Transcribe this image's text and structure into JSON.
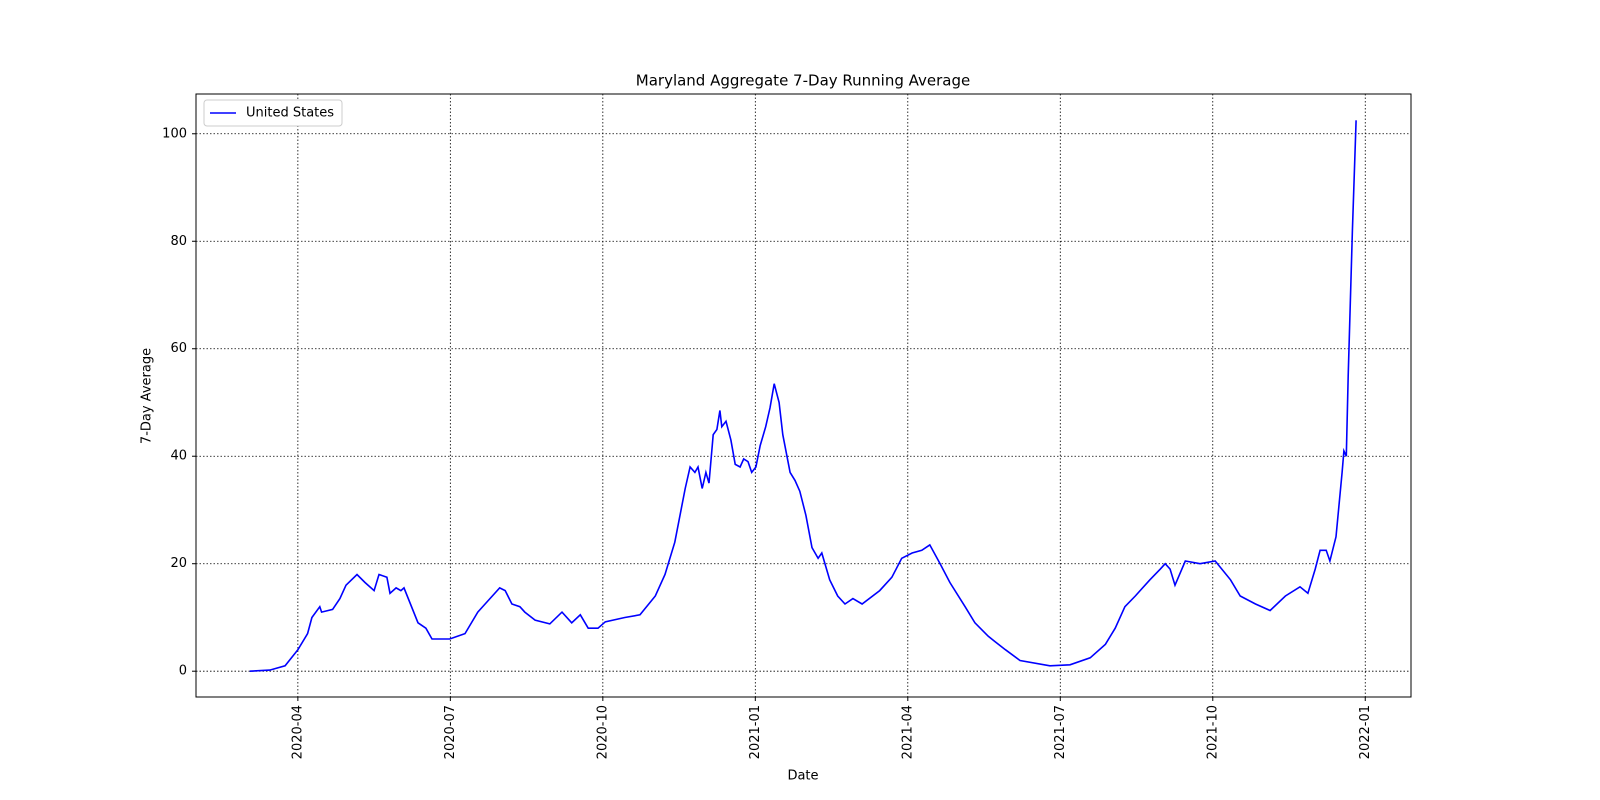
{
  "chart_data": {
    "type": "line",
    "title": "Maryland Aggregate 7-Day Running Average",
    "xlabel": "Date",
    "ylabel": "7-Day Average",
    "x": [
      2020.171,
      2020.204,
      2020.229,
      2020.25,
      2020.266,
      2020.273,
      2020.286,
      2020.289,
      2020.307,
      2020.319,
      2020.329,
      2020.347,
      2020.36,
      2020.375,
      2020.383,
      2020.396,
      2020.401,
      2020.411,
      2020.419,
      2020.424,
      2020.447,
      2020.46,
      2020.47,
      2020.499,
      2020.524,
      2020.545,
      2020.557,
      2020.581,
      2020.59,
      2020.601,
      2020.614,
      2020.622,
      2020.639,
      2020.663,
      2020.683,
      2020.699,
      2020.713,
      2020.726,
      2020.742,
      2020.754,
      2020.786,
      2020.811,
      2020.836,
      2020.852,
      2020.868,
      2020.885,
      2020.893,
      2020.901,
      2020.906,
      2020.913,
      2020.919,
      2020.924,
      2020.931,
      2020.937,
      2020.942,
      2020.945,
      2020.952,
      2020.96,
      2020.967,
      2020.975,
      2020.981,
      2020.988,
      2020.994,
      2021.001,
      2021.008,
      2021.017,
      2021.024,
      2021.031,
      2021.039,
      2021.045,
      2021.057,
      2021.065,
      2021.073,
      2021.083,
      2021.093,
      2021.103,
      2021.109,
      2021.122,
      2021.135,
      2021.147,
      2021.16,
      2021.175,
      2021.204,
      2021.224,
      2021.24,
      2021.257,
      2021.273,
      2021.286,
      2021.303,
      2021.319,
      2021.344,
      2021.36,
      2021.382,
      2021.393,
      2021.41,
      2021.434,
      2021.483,
      2021.516,
      2021.549,
      2021.574,
      2021.59,
      2021.606,
      2021.623,
      2021.647,
      2021.664,
      2021.672,
      2021.68,
      2021.688,
      2021.705,
      2021.729,
      2021.754,
      2021.779,
      2021.795,
      2021.82,
      2021.844,
      2021.869,
      2021.893,
      2021.906,
      2021.918,
      2021.926,
      2021.936,
      2021.942,
      2021.952,
      2021.962,
      2021.965,
      2021.969,
      2021.972,
      2021.979,
      2021.985
    ],
    "series": [
      {
        "name": "United States",
        "color": "#0000ff",
        "values": [
          0,
          0.2,
          1,
          4,
          7,
          10,
          12,
          11,
          11.5,
          13.5,
          16,
          18,
          16.5,
          15,
          18,
          17.5,
          14.5,
          15.5,
          15,
          15.5,
          9,
          8,
          6,
          6,
          7,
          11,
          12.5,
          15.5,
          15,
          12.5,
          12,
          11,
          9.5,
          8.8,
          11,
          9,
          10.5,
          8,
          8,
          9.2,
          10,
          10.5,
          14,
          18,
          24,
          34,
          38,
          37,
          38,
          34,
          37,
          35,
          44,
          45,
          48.5,
          45.5,
          46.5,
          43,
          38.5,
          38,
          39.5,
          39,
          37,
          38,
          42,
          45.5,
          49,
          53.5,
          50,
          44,
          37,
          35.5,
          33.5,
          29,
          23,
          21,
          22,
          17,
          14,
          12.5,
          13.5,
          12.5,
          15,
          17.5,
          21,
          22,
          22.5,
          23.5,
          20,
          16.5,
          12,
          9,
          6.5,
          5.5,
          4,
          2,
          1,
          1.2,
          2.5,
          5,
          8,
          12,
          14,
          17,
          19,
          20,
          19,
          16,
          20.5,
          20,
          20.5,
          17,
          14,
          12.5,
          11.3,
          14,
          15.7,
          14.5,
          19,
          22.5,
          22.5,
          20.5,
          25,
          37,
          41,
          40,
          55,
          82,
          102.5
        ]
      }
    ],
    "xlim": [
      2020.083,
      2022.075
    ],
    "xticks": [
      {
        "value": 2020.25,
        "label": "2020-04"
      },
      {
        "value": 2020.5,
        "label": "2020-07"
      },
      {
        "value": 2020.75,
        "label": "2020-10"
      },
      {
        "value": 2021.0,
        "label": "2021-01"
      },
      {
        "value": 2021.25,
        "label": "2021-04"
      },
      {
        "value": 2021.5,
        "label": "2021-07"
      },
      {
        "value": 2021.75,
        "label": "2021-10"
      },
      {
        "value": 2022.0,
        "label": "2022-01"
      }
    ],
    "ylim": [
      -4.8,
      107.4
    ],
    "yticks": [
      0,
      20,
      40,
      60,
      80,
      100
    ],
    "grid": true,
    "legend": "upper left"
  }
}
